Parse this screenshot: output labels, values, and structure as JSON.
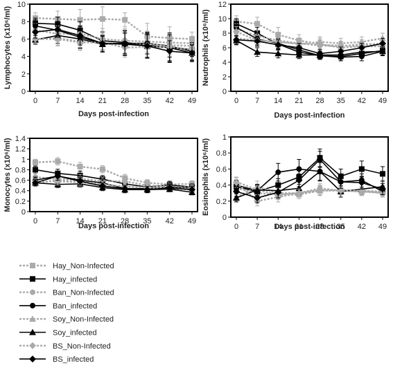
{
  "legend": [
    {
      "name": "Hay_Non-Infected",
      "color": "#aaaaaa",
      "marker": "square",
      "dashed": true
    },
    {
      "name": "Hay_infected",
      "color": "#000000",
      "marker": "square",
      "dashed": false
    },
    {
      "name": "Ban_Non-Infected",
      "color": "#aaaaaa",
      "marker": "circle",
      "dashed": true
    },
    {
      "name": "Ban_infected",
      "color": "#000000",
      "marker": "circle",
      "dashed": false
    },
    {
      "name": "Soy_Non-Infected",
      "color": "#aaaaaa",
      "marker": "triangle",
      "dashed": true
    },
    {
      "name": "Soy_infected",
      "color": "#000000",
      "marker": "triangle",
      "dashed": false
    },
    {
      "name": "BS_Non-Infected",
      "color": "#aaaaaa",
      "marker": "diamond",
      "dashed": true
    },
    {
      "name": "BS_infected",
      "color": "#000000",
      "marker": "diamond",
      "dashed": false
    }
  ],
  "chart_data": [
    {
      "type": "line",
      "xlabel": "Days post-infection",
      "ylabel": "Lymphocytes (x10⁶/ml)",
      "x": [
        0,
        7,
        14,
        21,
        28,
        35,
        42,
        49
      ],
      "ylim": [
        0,
        10
      ],
      "yticks": [
        0,
        2,
        4,
        6,
        8,
        10
      ],
      "series": [
        {
          "name": "Hay_Non-Infected",
          "values": [
            8.4,
            8.3,
            8.2,
            8.3,
            8.2,
            6.3,
            6.1,
            6.0
          ],
          "err": [
            0.6,
            0.9,
            1.2,
            1.4,
            0.8,
            1.5,
            1.3,
            0.8
          ]
        },
        {
          "name": "Hay_infected",
          "values": [
            7.8,
            7.7,
            7.0,
            5.8,
            5.6,
            5.3,
            5.0,
            4.8
          ],
          "err": [
            0.6,
            0.8,
            1.0,
            1.0,
            1.4,
            1.5,
            1.7,
            0.8
          ]
        },
        {
          "name": "Ban_Non-Infected",
          "values": [
            7.0,
            6.6,
            6.6,
            6.0,
            5.8,
            5.7,
            5.6,
            5.5
          ],
          "err": [
            0.8,
            0.9,
            1.0,
            1.2,
            1.4,
            1.2,
            1.0,
            0.8
          ]
        },
        {
          "name": "Ban_infected",
          "values": [
            7.5,
            7.0,
            6.2,
            5.5,
            5.5,
            5.5,
            5.2,
            4.6
          ],
          "err": [
            0.7,
            1.0,
            1.2,
            0.9,
            1.4,
            1.2,
            1.3,
            1.0
          ]
        },
        {
          "name": "Soy_Non-Infected",
          "values": [
            6.0,
            6.1,
            5.7,
            5.5,
            5.4,
            5.4,
            5.3,
            5.2
          ],
          "err": [
            0.6,
            0.8,
            1.0,
            1.0,
            1.2,
            1.2,
            1.1,
            1.0
          ]
        },
        {
          "name": "Soy_infected",
          "values": [
            5.9,
            6.4,
            6.0,
            5.4,
            5.5,
            5.2,
            5.0,
            4.4
          ],
          "err": [
            0.5,
            0.9,
            1.1,
            0.9,
            1.2,
            1.4,
            1.5,
            1.0
          ]
        },
        {
          "name": "BS_Non-Infected",
          "values": [
            6.0,
            6.0,
            5.6,
            5.6,
            5.0,
            5.1,
            5.1,
            4.8
          ],
          "err": [
            0.5,
            0.8,
            0.9,
            1.0,
            1.1,
            1.2,
            1.1,
            0.9
          ]
        },
        {
          "name": "BS_infected",
          "values": [
            6.8,
            7.1,
            6.4,
            5.5,
            5.4,
            5.2,
            4.6,
            4.4
          ],
          "err": [
            0.7,
            0.9,
            1.1,
            0.9,
            1.3,
            1.3,
            1.2,
            0.9
          ]
        }
      ]
    },
    {
      "type": "line",
      "xlabel": "Days post-infection",
      "ylabel": "Neutrophils (x10⁶/ml)",
      "x": [
        0,
        7,
        14,
        21,
        28,
        35,
        42,
        49
      ],
      "ylim": [
        0,
        12
      ],
      "yticks": [
        0,
        2,
        4,
        6,
        8,
        10,
        12
      ],
      "series": [
        {
          "name": "Hay_Non-Infected",
          "values": [
            9.6,
            9.3,
            7.8,
            7.0,
            6.5,
            6.0,
            6.2,
            6.2
          ],
          "err": [
            0.8,
            0.9,
            1.0,
            0.8,
            0.8,
            0.7,
            0.7,
            0.6
          ]
        },
        {
          "name": "Hay_infected",
          "values": [
            9.3,
            8.0,
            6.5,
            5.4,
            4.9,
            4.8,
            5.2,
            5.6
          ],
          "err": [
            0.7,
            0.8,
            0.8,
            0.6,
            0.5,
            0.6,
            0.6,
            0.6
          ]
        },
        {
          "name": "Ban_Non-Infected",
          "values": [
            8.6,
            7.6,
            7.0,
            6.6,
            6.3,
            6.2,
            6.5,
            6.5
          ],
          "err": [
            0.7,
            0.8,
            0.9,
            0.7,
            0.7,
            0.6,
            0.6,
            0.6
          ]
        },
        {
          "name": "Ban_infected",
          "values": [
            8.8,
            7.2,
            6.6,
            5.7,
            4.9,
            4.7,
            4.8,
            5.5
          ],
          "err": [
            0.8,
            0.8,
            0.7,
            0.6,
            0.5,
            0.5,
            0.6,
            0.6
          ]
        },
        {
          "name": "Soy_Non-Infected",
          "values": [
            7.3,
            7.0,
            6.8,
            6.5,
            6.8,
            6.6,
            6.8,
            7.3
          ],
          "err": [
            0.6,
            0.7,
            0.8,
            0.7,
            0.7,
            0.7,
            0.7,
            0.7
          ]
        },
        {
          "name": "Soy_infected",
          "values": [
            7.0,
            5.4,
            5.2,
            5.0,
            5.0,
            5.0,
            5.4,
            5.5
          ],
          "err": [
            0.6,
            0.6,
            0.6,
            0.5,
            0.5,
            0.5,
            0.6,
            0.6
          ]
        },
        {
          "name": "BS_Non-Infected",
          "values": [
            8.2,
            7.0,
            6.8,
            6.6,
            6.4,
            6.3,
            6.2,
            6.5
          ],
          "err": [
            0.7,
            0.7,
            0.8,
            0.7,
            0.7,
            0.6,
            0.6,
            0.6
          ]
        },
        {
          "name": "BS_infected",
          "values": [
            7.1,
            6.9,
            6.4,
            6.0,
            5.2,
            5.5,
            6.0,
            6.6
          ],
          "err": [
            0.6,
            0.7,
            0.7,
            0.6,
            0.6,
            0.6,
            0.6,
            0.7
          ]
        }
      ]
    },
    {
      "type": "line",
      "xlabel": "Days post-infection",
      "ylabel": "Monocytes (x10⁶/ml)",
      "x": [
        0,
        7,
        14,
        21,
        28,
        35,
        42,
        49
      ],
      "ylim": [
        0,
        1.4
      ],
      "yticks": [
        0,
        0.2,
        0.4,
        0.6,
        0.8,
        1,
        1.2,
        1.4
      ],
      "series": [
        {
          "name": "Hay_Non-Infected",
          "values": [
            0.94,
            0.96,
            0.86,
            0.81,
            0.64,
            0.55,
            0.52,
            0.53
          ],
          "err": [
            0.06,
            0.07,
            0.08,
            0.07,
            0.07,
            0.06,
            0.06,
            0.06
          ]
        },
        {
          "name": "Hay_infected",
          "values": [
            0.8,
            0.73,
            0.69,
            0.62,
            0.53,
            0.47,
            0.51,
            0.47
          ],
          "err": [
            0.07,
            0.08,
            0.08,
            0.07,
            0.07,
            0.06,
            0.07,
            0.06
          ]
        },
        {
          "name": "Ban_Non-Infected",
          "values": [
            0.66,
            0.62,
            0.63,
            0.58,
            0.58,
            0.5,
            0.48,
            0.46
          ],
          "err": [
            0.07,
            0.08,
            0.08,
            0.07,
            0.07,
            0.06,
            0.06,
            0.06
          ]
        },
        {
          "name": "Ban_infected",
          "values": [
            0.6,
            0.68,
            0.6,
            0.55,
            0.44,
            0.44,
            0.47,
            0.45
          ],
          "err": [
            0.06,
            0.08,
            0.08,
            0.07,
            0.06,
            0.06,
            0.06,
            0.06
          ]
        },
        {
          "name": "Soy_Non-Infected",
          "values": [
            0.55,
            0.6,
            0.58,
            0.52,
            0.48,
            0.46,
            0.44,
            0.42
          ],
          "err": [
            0.06,
            0.07,
            0.07,
            0.06,
            0.06,
            0.06,
            0.06,
            0.06
          ]
        },
        {
          "name": "Soy_infected",
          "values": [
            0.55,
            0.52,
            0.53,
            0.46,
            0.42,
            0.42,
            0.43,
            0.37
          ],
          "err": [
            0.06,
            0.06,
            0.06,
            0.06,
            0.06,
            0.05,
            0.05,
            0.05
          ]
        },
        {
          "name": "BS_Non-Infected",
          "values": [
            0.57,
            0.58,
            0.56,
            0.52,
            0.48,
            0.46,
            0.45,
            0.44
          ],
          "err": [
            0.06,
            0.07,
            0.07,
            0.06,
            0.06,
            0.06,
            0.06,
            0.06
          ]
        },
        {
          "name": "BS_infected",
          "values": [
            0.55,
            0.68,
            0.58,
            0.49,
            0.44,
            0.42,
            0.45,
            0.42
          ],
          "err": [
            0.06,
            0.08,
            0.07,
            0.06,
            0.06,
            0.06,
            0.06,
            0.06
          ]
        }
      ]
    },
    {
      "type": "line",
      "xlabel": "Days post-infection",
      "ylabel": "Eosinophils (x10⁶/ml)",
      "x": [
        0,
        7,
        14,
        21,
        28,
        35,
        42,
        49
      ],
      "ylim": [
        0,
        1
      ],
      "yticks": [
        0,
        0.2,
        0.4,
        0.6,
        0.8,
        1
      ],
      "series": [
        {
          "name": "Hay_Non-Infected",
          "values": [
            0.36,
            0.3,
            0.28,
            0.28,
            0.33,
            0.33,
            0.32,
            0.31
          ],
          "err": [
            0.06,
            0.06,
            0.06,
            0.05,
            0.06,
            0.05,
            0.05,
            0.05
          ]
        },
        {
          "name": "Hay_infected",
          "values": [
            0.38,
            0.32,
            0.4,
            0.5,
            0.74,
            0.51,
            0.6,
            0.54
          ],
          "err": [
            0.06,
            0.07,
            0.08,
            0.09,
            0.11,
            0.09,
            0.1,
            0.09
          ]
        },
        {
          "name": "Ban_Non-Infected",
          "values": [
            0.44,
            0.34,
            0.28,
            0.3,
            0.36,
            0.33,
            0.32,
            0.3
          ],
          "err": [
            0.06,
            0.06,
            0.06,
            0.05,
            0.06,
            0.05,
            0.05,
            0.05
          ]
        },
        {
          "name": "Ban_infected",
          "values": [
            0.4,
            0.33,
            0.56,
            0.6,
            0.57,
            0.44,
            0.46,
            0.32
          ],
          "err": [
            0.06,
            0.07,
            0.11,
            0.12,
            0.11,
            0.08,
            0.08,
            0.07
          ]
        },
        {
          "name": "Soy_Non-Infected",
          "values": [
            0.25,
            0.38,
            0.3,
            0.3,
            0.33,
            0.34,
            0.33,
            0.32
          ],
          "err": [
            0.05,
            0.07,
            0.06,
            0.05,
            0.06,
            0.05,
            0.05,
            0.05
          ]
        },
        {
          "name": "Soy_infected",
          "values": [
            0.24,
            0.34,
            0.33,
            0.36,
            0.57,
            0.32,
            0.35,
            0.38
          ],
          "err": [
            0.05,
            0.07,
            0.07,
            0.08,
            0.12,
            0.07,
            0.07,
            0.07
          ]
        },
        {
          "name": "BS_Non-Infected",
          "values": [
            0.43,
            0.2,
            0.25,
            0.3,
            0.34,
            0.33,
            0.33,
            0.3
          ],
          "err": [
            0.06,
            0.06,
            0.06,
            0.05,
            0.06,
            0.05,
            0.05,
            0.05
          ]
        },
        {
          "name": "BS_infected",
          "values": [
            0.32,
            0.24,
            0.31,
            0.46,
            0.72,
            0.44,
            0.43,
            0.35
          ],
          "err": [
            0.06,
            0.06,
            0.07,
            0.08,
            0.1,
            0.08,
            0.08,
            0.07
          ]
        }
      ]
    }
  ]
}
